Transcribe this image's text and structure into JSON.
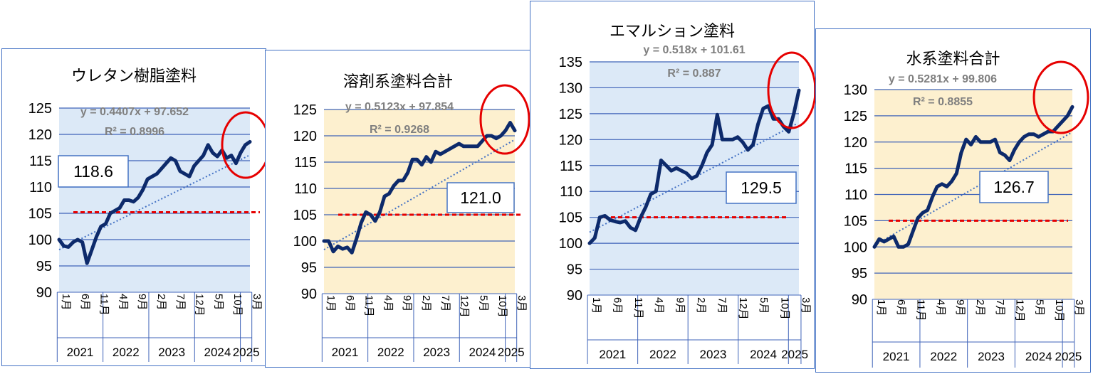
{
  "chart_data": [
    {
      "type": "line",
      "title": "ウレタン樹脂塗料",
      "title_bold": true,
      "plot_bg": "#dce9f7",
      "ylim": [
        90,
        125
      ],
      "yticks": [
        90,
        95,
        100,
        105,
        110,
        115,
        120,
        125
      ],
      "x_labels": [
        "1月",
        "6月",
        "11月",
        "4月",
        "9月",
        "2月",
        "7月",
        "12月",
        "5月",
        "10月",
        "3月"
      ],
      "x_label_months": [
        1,
        6,
        11,
        16,
        21,
        26,
        31,
        36,
        41,
        46,
        51
      ],
      "years": [
        {
          "label": "2021",
          "from": 1,
          "to": 12
        },
        {
          "label": "2022",
          "from": 13,
          "to": 24
        },
        {
          "label": "2023",
          "from": 25,
          "to": 36
        },
        {
          "label": "2024",
          "from": 37,
          "to": 48
        },
        {
          "label": "2025",
          "from": 49,
          "to": 51
        }
      ],
      "series": [
        {
          "color": "#0d2a6b",
          "values": [
            100.0,
            98.8,
            98.6,
            99.5,
            100.0,
            99.5,
            95.5,
            98.0,
            100.5,
            102.5,
            103.0,
            105.0,
            105.5,
            106.0,
            107.5,
            107.5,
            107.2,
            108.0,
            109.5,
            111.5,
            112.0,
            112.5,
            113.5,
            114.5,
            115.5,
            115.0,
            113.0,
            112.5,
            112.0,
            114.0,
            115.0,
            116.0,
            118.0,
            116.5,
            115.8,
            117.0,
            115.5,
            116.0,
            114.5,
            116.5,
            118.0,
            118.6
          ]
        }
      ],
      "trend": {
        "equation": "y = 0.4407x + 97.652",
        "r2": "R² = 0.8996",
        "slope": 0.4407,
        "intercept": 97.652
      },
      "reference_line": 105.2,
      "callout": "118.6",
      "circle_at": {
        "month": 40,
        "value": 119
      }
    },
    {
      "type": "line",
      "title": "溶剤系塗料合計",
      "title_bold": false,
      "plot_bg": "#fdf0cf",
      "ylim": [
        90,
        125
      ],
      "yticks": [
        90,
        95,
        100,
        105,
        110,
        115,
        120,
        125
      ],
      "x_labels": [
        "1月",
        "6月",
        "11月",
        "4月",
        "9月",
        "2月",
        "7月",
        "12月",
        "5月",
        "10月",
        "3月"
      ],
      "x_label_months": [
        1,
        6,
        11,
        16,
        21,
        26,
        31,
        36,
        41,
        46,
        51
      ],
      "years": [
        {
          "label": "2021",
          "from": 1,
          "to": 12
        },
        {
          "label": "2022",
          "from": 13,
          "to": 24
        },
        {
          "label": "2023",
          "from": 25,
          "to": 36
        },
        {
          "label": "2024",
          "from": 37,
          "to": 48
        },
        {
          "label": "2025",
          "from": 49,
          "to": 51
        }
      ],
      "series": [
        {
          "color": "#0d2a6b",
          "values": [
            100.0,
            100.0,
            98.0,
            99.0,
            98.5,
            98.8,
            97.8,
            100.5,
            103.5,
            105.5,
            105.0,
            103.8,
            105.5,
            108.5,
            109.0,
            110.5,
            111.5,
            111.5,
            113.0,
            115.5,
            115.5,
            114.5,
            116.0,
            115.0,
            117.0,
            116.5,
            117.0,
            117.5,
            118.0,
            118.5,
            118.0,
            118.0,
            118.0,
            118.0,
            119.0,
            120.0,
            120.0,
            119.5,
            120.0,
            121.0,
            122.5,
            121.0
          ]
        }
      ],
      "trend": {
        "equation": "y = 0.5123x + 97.854",
        "r2": "R² = 0.9268",
        "slope": 0.5123,
        "intercept": 97.854
      },
      "reference_line": 105.0,
      "callout": "121.0",
      "circle_at": {
        "month": 40,
        "value": 121.5
      }
    },
    {
      "type": "line",
      "title": "エマルション塗料",
      "title_bold": true,
      "plot_bg": "#dce9f7",
      "ylim": [
        90,
        135
      ],
      "yticks": [
        90,
        95,
        100,
        105,
        110,
        115,
        120,
        125,
        130,
        135
      ],
      "x_labels": [
        "1月",
        "6月",
        "11月",
        "4月",
        "9月",
        "2月",
        "7月",
        "12月",
        "5月",
        "10月",
        "3月"
      ],
      "x_label_months": [
        1,
        6,
        11,
        16,
        21,
        26,
        31,
        36,
        41,
        46,
        51
      ],
      "years": [
        {
          "label": "2021",
          "from": 1,
          "to": 12
        },
        {
          "label": "2022",
          "from": 13,
          "to": 24
        },
        {
          "label": "2023",
          "from": 25,
          "to": 36
        },
        {
          "label": "2024",
          "from": 37,
          "to": 48
        },
        {
          "label": "2025",
          "from": 49,
          "to": 51
        }
      ],
      "series": [
        {
          "color": "#0d2a6b",
          "values": [
            100.0,
            101.0,
            105.0,
            105.3,
            104.5,
            104.2,
            104.0,
            104.3,
            103.0,
            102.5,
            105.0,
            107.0,
            109.5,
            110.0,
            116.0,
            115.0,
            114.0,
            114.5,
            114.0,
            113.5,
            112.5,
            113.0,
            115.0,
            117.5,
            119.0,
            124.8,
            120.0,
            120.0,
            120.0,
            120.5,
            119.5,
            118.0,
            119.0,
            123.0,
            126.0,
            126.5,
            124.0,
            124.0,
            122.5,
            121.5,
            125.0,
            129.5
          ]
        }
      ],
      "trend": {
        "equation": "y = 0.518x + 101.61",
        "r2": "R² = 0.887",
        "slope": 0.518,
        "intercept": 101.61
      },
      "reference_line": 105.0,
      "callout": "129.5",
      "circle_at": {
        "month": 41,
        "value": 127
      }
    },
    {
      "type": "line",
      "title": "水系塗料合計",
      "title_bold": false,
      "plot_bg": "#fdf0cf",
      "ylim": [
        90,
        130
      ],
      "yticks": [
        90,
        95,
        100,
        105,
        110,
        115,
        120,
        125,
        130
      ],
      "x_labels": [
        "1月",
        "6月",
        "11月",
        "4月",
        "9月",
        "2月",
        "7月",
        "12月",
        "5月",
        "10月",
        "3月"
      ],
      "x_label_months": [
        1,
        6,
        11,
        16,
        21,
        26,
        31,
        36,
        41,
        46,
        51
      ],
      "years": [
        {
          "label": "2021",
          "from": 1,
          "to": 12
        },
        {
          "label": "2022",
          "from": 13,
          "to": 24
        },
        {
          "label": "2023",
          "from": 25,
          "to": 36
        },
        {
          "label": "2024",
          "from": 37,
          "to": 48
        },
        {
          "label": "2025",
          "from": 49,
          "to": 51
        }
      ],
      "series": [
        {
          "color": "#0d2a6b",
          "values": [
            100.0,
            101.5,
            101.0,
            101.5,
            102.0,
            100.0,
            100.0,
            100.5,
            103.0,
            105.5,
            106.5,
            107.0,
            109.5,
            111.5,
            112.0,
            111.5,
            112.5,
            114.0,
            118.0,
            120.5,
            119.5,
            121.0,
            120.0,
            120.0,
            120.0,
            120.5,
            118.0,
            117.5,
            116.5,
            118.5,
            120.0,
            121.0,
            121.5,
            121.5,
            121.0,
            121.5,
            122.0,
            122.0,
            123.0,
            124.0,
            125.0,
            126.7
          ]
        }
      ],
      "trend": {
        "equation": "y = 0.5281x + 99.806",
        "r2": "R² = 0.8855",
        "slope": 0.5281,
        "intercept": 99.806
      },
      "reference_line": 105.0,
      "callout": "126.7",
      "circle_at": {
        "month": 40,
        "value": 126
      }
    }
  ]
}
